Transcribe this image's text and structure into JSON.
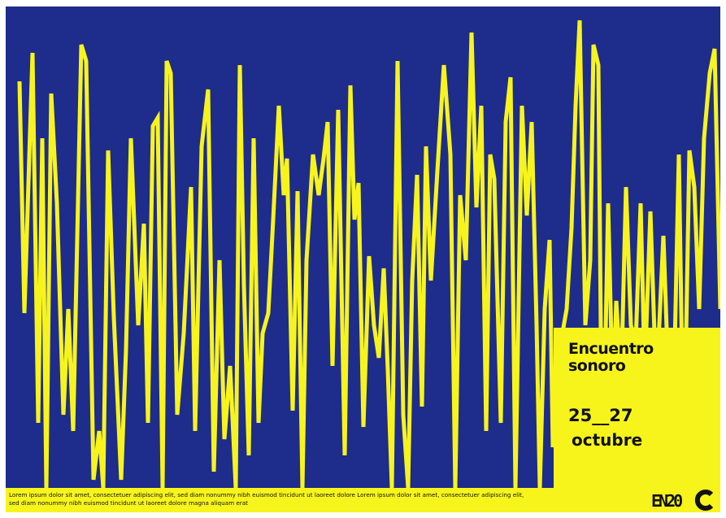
{
  "poster": {
    "title_lines": [
      "Encuentro",
      "sonoro"
    ],
    "dates": "25__27",
    "month": "octubre",
    "footer_lines": [
      "Lorem ipsum dolor sit amet, consectetuer adipiscing elit, sed diam nonummy nibh euismod tincidunt ut laoreet dolore Lorem ipsum dolor sit amet, consectetuer adipiscing elit,",
      "sed diam nonummy nibh euismod tincidunt ut laoreet dolore magna aliquam erat"
    ],
    "logo_text": "EN20"
  }
}
